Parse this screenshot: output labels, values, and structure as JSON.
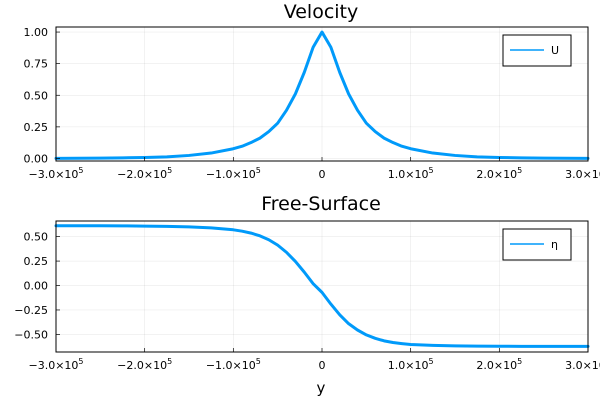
{
  "chart_data": [
    {
      "type": "line",
      "title": "Velocity",
      "xlabel": "",
      "ylabel": "",
      "xlim": [
        -300000,
        300000
      ],
      "ylim": [
        -0.02,
        1.04
      ],
      "x_ticks": [
        -300000,
        -200000,
        -100000,
        0,
        100000,
        200000,
        300000
      ],
      "x_tick_labels": [
        {
          "mantissa": "−3.0×10",
          "exp": "5"
        },
        {
          "mantissa": "−2.0×10",
          "exp": "5"
        },
        {
          "mantissa": "−1.0×10",
          "exp": "5"
        },
        {
          "mantissa": "0",
          "exp": ""
        },
        {
          "mantissa": "1.0×10",
          "exp": "5"
        },
        {
          "mantissa": "2.0×10",
          "exp": "5"
        },
        {
          "mantissa": "3.0×10",
          "exp": "5"
        }
      ],
      "y_ticks": [
        0,
        0.25,
        0.5,
        0.75,
        1.0
      ],
      "y_tick_labels": [
        "0.00",
        "0.25",
        "0.50",
        "0.75",
        "1.00"
      ],
      "grid": true,
      "legend": "top-right",
      "series": [
        {
          "name": "U",
          "color": "#009AFA",
          "x": [
            -300000,
            -275000,
            -250000,
            -225000,
            -200000,
            -175000,
            -150000,
            -125000,
            -100000,
            -90000,
            -80000,
            -70000,
            -60000,
            -50000,
            -40000,
            -30000,
            -20000,
            -10000,
            0,
            10000,
            20000,
            30000,
            40000,
            50000,
            60000,
            70000,
            80000,
            90000,
            100000,
            125000,
            150000,
            175000,
            200000,
            225000,
            250000,
            275000,
            300000
          ],
          "y": [
            0.001,
            0.002,
            0.003,
            0.005,
            0.008,
            0.013,
            0.024,
            0.043,
            0.077,
            0.097,
            0.126,
            0.161,
            0.213,
            0.279,
            0.382,
            0.511,
            0.681,
            0.88,
            1.0,
            0.88,
            0.681,
            0.511,
            0.382,
            0.279,
            0.213,
            0.161,
            0.126,
            0.097,
            0.077,
            0.043,
            0.024,
            0.013,
            0.008,
            0.005,
            0.003,
            0.002,
            0.001
          ]
        }
      ]
    },
    {
      "type": "line",
      "title": "Free-Surface",
      "xlabel": "y",
      "ylabel": "",
      "xlim": [
        -300000,
        300000
      ],
      "ylim": [
        -0.68,
        0.66
      ],
      "x_ticks": [
        -300000,
        -200000,
        -100000,
        0,
        100000,
        200000,
        300000
      ],
      "x_tick_labels": [
        {
          "mantissa": "−3.0×10",
          "exp": "5"
        },
        {
          "mantissa": "−2.0×10",
          "exp": "5"
        },
        {
          "mantissa": "−1.0×10",
          "exp": "5"
        },
        {
          "mantissa": "0",
          "exp": ""
        },
        {
          "mantissa": "1.0×10",
          "exp": "5"
        },
        {
          "mantissa": "2.0×10",
          "exp": "5"
        },
        {
          "mantissa": "3.0×10",
          "exp": "5"
        }
      ],
      "y_ticks": [
        -0.5,
        -0.25,
        0,
        0.25,
        0.5
      ],
      "y_tick_labels": [
        "−0.50",
        "−0.25",
        "0.00",
        "0.25",
        "0.50"
      ],
      "grid": true,
      "legend": "top-right",
      "series": [
        {
          "name": "η",
          "color": "#009AFA",
          "x": [
            -300000,
            -275000,
            -250000,
            -225000,
            -200000,
            -175000,
            -150000,
            -125000,
            -100000,
            -90000,
            -80000,
            -70000,
            -60000,
            -50000,
            -40000,
            -30000,
            -20000,
            -10000,
            0,
            10000,
            20000,
            30000,
            40000,
            50000,
            60000,
            70000,
            80000,
            90000,
            100000,
            125000,
            150000,
            175000,
            200000,
            225000,
            250000,
            275000,
            300000
          ],
          "y": [
            0.612,
            0.611,
            0.611,
            0.61,
            0.608,
            0.605,
            0.6,
            0.59,
            0.57,
            0.556,
            0.536,
            0.508,
            0.468,
            0.413,
            0.339,
            0.246,
            0.137,
            0.019,
            -0.07,
            -0.19,
            -0.3,
            -0.39,
            -0.455,
            -0.505,
            -0.54,
            -0.566,
            -0.583,
            -0.594,
            -0.603,
            -0.612,
            -0.617,
            -0.62,
            -0.621,
            -0.622,
            -0.622,
            -0.622,
            -0.622
          ]
        }
      ]
    }
  ]
}
